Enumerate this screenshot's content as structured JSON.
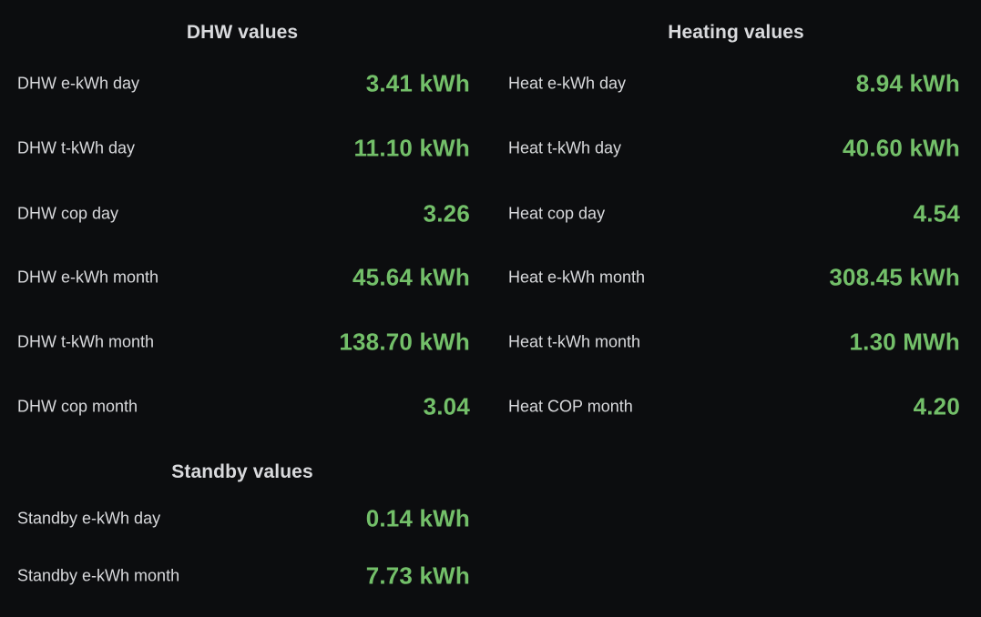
{
  "colors": {
    "background": "#0c0d0f",
    "value": "#73bf69",
    "label": "#d8d9dc"
  },
  "dhw": {
    "title": "DHW values",
    "rows": [
      {
        "label": "DHW e-kWh day",
        "value": "3.41 kWh"
      },
      {
        "label": "DHW t-kWh day",
        "value": "11.10 kWh"
      },
      {
        "label": "DHW cop day",
        "value": "3.26"
      },
      {
        "label": "DHW e-kWh month",
        "value": "45.64 kWh"
      },
      {
        "label": "DHW t-kWh month",
        "value": "138.70 kWh"
      },
      {
        "label": "DHW cop month",
        "value": "3.04"
      }
    ]
  },
  "heating": {
    "title": "Heating values",
    "rows": [
      {
        "label": "Heat e-kWh day",
        "value": "8.94 kWh"
      },
      {
        "label": "Heat t-kWh day",
        "value": "40.60 kWh"
      },
      {
        "label": "Heat cop day",
        "value": "4.54"
      },
      {
        "label": "Heat e-kWh month",
        "value": "308.45 kWh"
      },
      {
        "label": "Heat t-kWh month",
        "value": "1.30 MWh"
      },
      {
        "label": "Heat COP month",
        "value": "4.20"
      }
    ]
  },
  "standby": {
    "title": "Standby values",
    "rows": [
      {
        "label": "Standby e-kWh day",
        "value": "0.14 kWh"
      },
      {
        "label": "Standby e-kWh month",
        "value": "7.73 kWh"
      }
    ]
  }
}
